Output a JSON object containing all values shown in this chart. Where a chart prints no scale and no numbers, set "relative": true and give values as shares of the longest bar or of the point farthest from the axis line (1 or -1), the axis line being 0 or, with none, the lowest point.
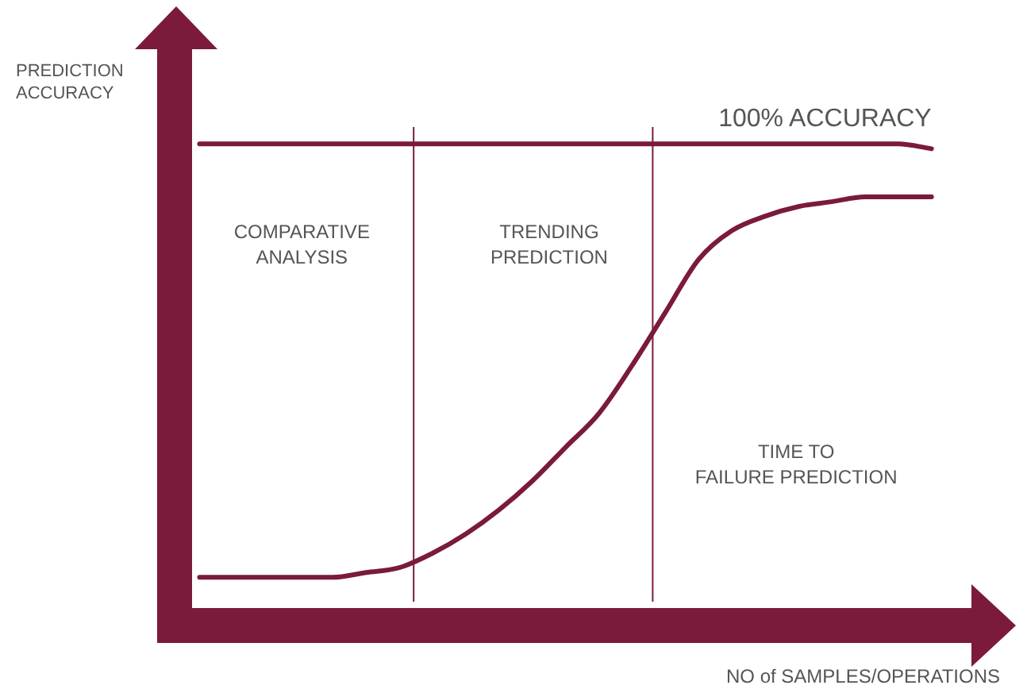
{
  "chart_data": {
    "type": "line",
    "relative": true,
    "ylabel": "PREDICTION ACCURACY",
    "xlabel": "NO of SAMPLES/OPERATIONS",
    "categories": [
      null,
      null,
      null,
      null,
      null,
      null,
      null,
      null,
      null,
      null,
      null,
      null,
      null,
      null,
      null,
      null,
      null,
      null,
      null,
      null,
      null,
      null,
      null
    ],
    "series": [
      {
        "name": "100% ACCURACY",
        "color": "#7b1a3b",
        "values": [
          1,
          1,
          1,
          1,
          1,
          1,
          1,
          1,
          1,
          1,
          1,
          1,
          1,
          1,
          1,
          1,
          1,
          1,
          1,
          1,
          1,
          1,
          0.99
        ]
      },
      {
        "color": "#7b1a3b",
        "values": [
          0.1,
          0.1,
          0.1,
          0.1,
          0.1,
          0.11,
          0.12,
          0.15,
          0.19,
          0.24,
          0.3,
          0.37,
          0.44,
          0.54,
          0.65,
          0.76,
          0.82,
          0.85,
          0.87,
          0.88,
          0.89,
          0.89,
          0.89
        ]
      }
    ],
    "annotations": [
      "COMPARATIVE ANALYSIS",
      "TRENDING PREDICTION",
      "TIME TO FAILURE PREDICTION"
    ],
    "grid": false,
    "legend": false,
    "marker": "none",
    "line_style": "solid"
  }
}
